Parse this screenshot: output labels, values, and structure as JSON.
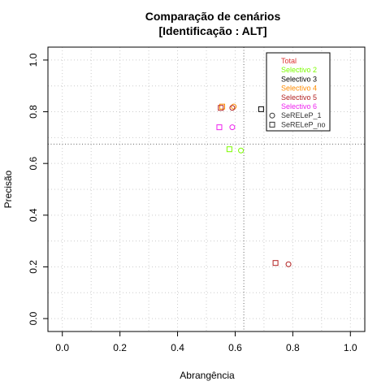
{
  "chart_data": {
    "type": "scatter",
    "title": "Comparação de cenários",
    "subtitle": "[Identificação : ALT]",
    "xlabel": "Abrangência",
    "ylabel": "Precisão",
    "xlim": [
      -0.05,
      1.05
    ],
    "ylim": [
      -0.05,
      1.05
    ],
    "xticks": [
      "0.0",
      "0.2",
      "0.4",
      "0.6",
      "0.8",
      "1.0"
    ],
    "yticks": [
      "0.0",
      "0.2",
      "0.4",
      "0.6",
      "0.8",
      "1.0"
    ],
    "grid": true,
    "reference_lines": {
      "x": 0.63,
      "y": 0.675
    },
    "legend_position": "top-right",
    "series": [
      {
        "name": "Total",
        "color": "#DD3333",
        "points": []
      },
      {
        "name": "Selectivo 2",
        "color": "#7CFC00",
        "points": [
          {
            "x": 0.62,
            "y": 0.65,
            "shape": "circle"
          },
          {
            "x": 0.58,
            "y": 0.655,
            "shape": "square"
          }
        ]
      },
      {
        "name": "Selectivo 3",
        "color": "#000000",
        "points": [
          {
            "x": 0.69,
            "y": 0.81,
            "shape": "square"
          }
        ]
      },
      {
        "name": "Selectivo 4",
        "color": "#FF8C00",
        "points": [
          {
            "x": 0.595,
            "y": 0.82,
            "shape": "circle"
          },
          {
            "x": 0.555,
            "y": 0.82,
            "shape": "square"
          }
        ]
      },
      {
        "name": "Selectivo 5",
        "color": "#B22222",
        "points": [
          {
            "x": 0.785,
            "y": 0.21,
            "shape": "circle"
          },
          {
            "x": 0.74,
            "y": 0.215,
            "shape": "square"
          },
          {
            "x": 0.59,
            "y": 0.815,
            "shape": "circle"
          },
          {
            "x": 0.55,
            "y": 0.815,
            "shape": "square"
          }
        ]
      },
      {
        "name": "Selectivo 6",
        "color": "#EE22EE",
        "points": [
          {
            "x": 0.59,
            "y": 0.74,
            "shape": "circle"
          },
          {
            "x": 0.545,
            "y": 0.74,
            "shape": "square"
          }
        ]
      }
    ],
    "shape_legend": [
      {
        "label": "SeRELeP_1",
        "shape": "circle"
      },
      {
        "label": "SeRELeP_no",
        "shape": "square"
      }
    ]
  }
}
